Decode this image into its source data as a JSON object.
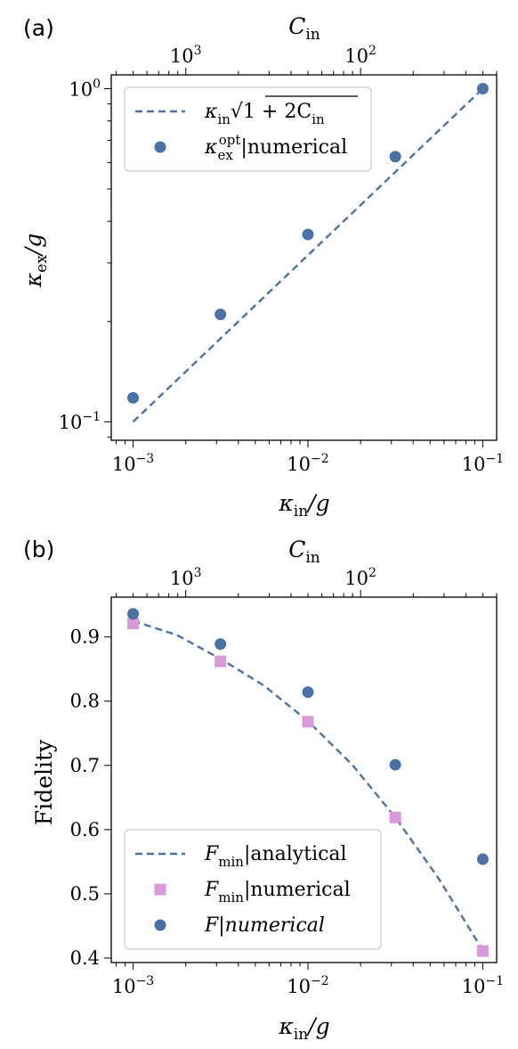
{
  "colors": {
    "line": "#4a72a6",
    "dot": "#4a72a6",
    "square": "#d99ad9",
    "axis": "#000000"
  },
  "chart_data": [
    {
      "panel": "(a)",
      "type": "scatter",
      "xscale": "log",
      "yscale": "log",
      "xlabel": "κin/g",
      "ylabel": "κex/g",
      "top_xlabel": "Cin",
      "xlim": [
        0.00075,
        0.12
      ],
      "ylim": [
        0.088,
        1.1
      ],
      "top_ticks": [
        {
          "x": 0.002,
          "base": "10",
          "exp": "3"
        },
        {
          "x": 0.02,
          "base": "10",
          "exp": "2"
        }
      ],
      "xticks": [
        {
          "x": 0.001,
          "base": "10",
          "exp": "−3"
        },
        {
          "x": 0.01,
          "base": "10",
          "exp": "−2"
        },
        {
          "x": 0.1,
          "base": "10",
          "exp": "−1"
        }
      ],
      "yticks": [
        {
          "y": 0.1,
          "base": "10",
          "exp": "−1"
        },
        {
          "y": 1.0,
          "base": "10",
          "exp": "0"
        }
      ],
      "series": [
        {
          "name": "κin√(1 + 2Cin)",
          "kind": "dashed-line",
          "x": [
            0.001,
            0.1
          ],
          "y": [
            0.1,
            1.0
          ]
        },
        {
          "name": "κex^opt|numerical",
          "kind": "circle",
          "x": [
            0.001,
            0.00316,
            0.01,
            0.0316,
            0.1
          ],
          "y": [
            0.118,
            0.21,
            0.365,
            0.625,
            1.0
          ]
        }
      ],
      "legend": {
        "position": "top-left",
        "items": [
          {
            "kind": "dashed-line",
            "parts": [
              {
                "t": "κ"
              },
              {
                "t": "in",
                "sub": true
              },
              {
                "t": "√"
              },
              {
                "t": "1 + 2C",
                "over": true
              },
              {
                "t": "in",
                "sub": true,
                "over": true
              }
            ]
          },
          {
            "kind": "circle",
            "parts": [
              {
                "t": "κ"
              },
              {
                "t": "ex",
                "sub": true
              },
              {
                "t": "opt",
                "sup": true
              },
              {
                "t": "|numerical"
              }
            ]
          }
        ]
      }
    },
    {
      "panel": "(b)",
      "type": "scatter",
      "xscale": "log",
      "yscale": "linear",
      "xlabel": "κin/g",
      "ylabel": "Fidelity",
      "top_xlabel": "Cin",
      "xlim": [
        0.00075,
        0.12
      ],
      "ylim": [
        0.393,
        0.962
      ],
      "top_ticks": [
        {
          "x": 0.002,
          "base": "10",
          "exp": "3"
        },
        {
          "x": 0.02,
          "base": "10",
          "exp": "2"
        }
      ],
      "xticks": [
        {
          "x": 0.001,
          "base": "10",
          "exp": "−3"
        },
        {
          "x": 0.01,
          "base": "10",
          "exp": "−2"
        },
        {
          "x": 0.1,
          "base": "10",
          "exp": "−1"
        }
      ],
      "yticks": [
        {
          "y": 0.4,
          "label": "0.4"
        },
        {
          "y": 0.5,
          "label": "0.5"
        },
        {
          "y": 0.6,
          "label": "0.6"
        },
        {
          "y": 0.7,
          "label": "0.7"
        },
        {
          "y": 0.8,
          "label": "0.8"
        },
        {
          "y": 0.9,
          "label": "0.9"
        }
      ],
      "series": [
        {
          "name": "Fmin|analytical",
          "kind": "dashed-line",
          "x": [
            0.001,
            0.00178,
            0.00316,
            0.00562,
            0.01,
            0.0178,
            0.0316,
            0.0562,
            0.1
          ],
          "y": [
            0.925,
            0.903,
            0.866,
            0.824,
            0.769,
            0.702,
            0.619,
            0.523,
            0.412
          ]
        },
        {
          "name": "Fmin|numerical",
          "kind": "square",
          "x": [
            0.001,
            0.00316,
            0.01,
            0.0316,
            0.1
          ],
          "y": [
            0.921,
            0.862,
            0.768,
            0.619,
            0.411
          ]
        },
        {
          "name": "F|numerical",
          "kind": "circle",
          "x": [
            0.001,
            0.00316,
            0.01,
            0.0316,
            0.1
          ],
          "y": [
            0.936,
            0.889,
            0.814,
            0.701,
            0.554
          ]
        }
      ],
      "legend": {
        "position": "bottom-left",
        "items": [
          {
            "kind": "dashed-line",
            "parts": [
              {
                "t": "F"
              },
              {
                "t": "min",
                "sub": true
              },
              {
                "t": "|analytical"
              }
            ]
          },
          {
            "kind": "square",
            "parts": [
              {
                "t": "F"
              },
              {
                "t": "min",
                "sub": true
              },
              {
                "t": "|numerical"
              }
            ]
          },
          {
            "kind": "circle",
            "parts": [
              {
                "t": "F|numerical"
              }
            ]
          }
        ]
      }
    }
  ]
}
